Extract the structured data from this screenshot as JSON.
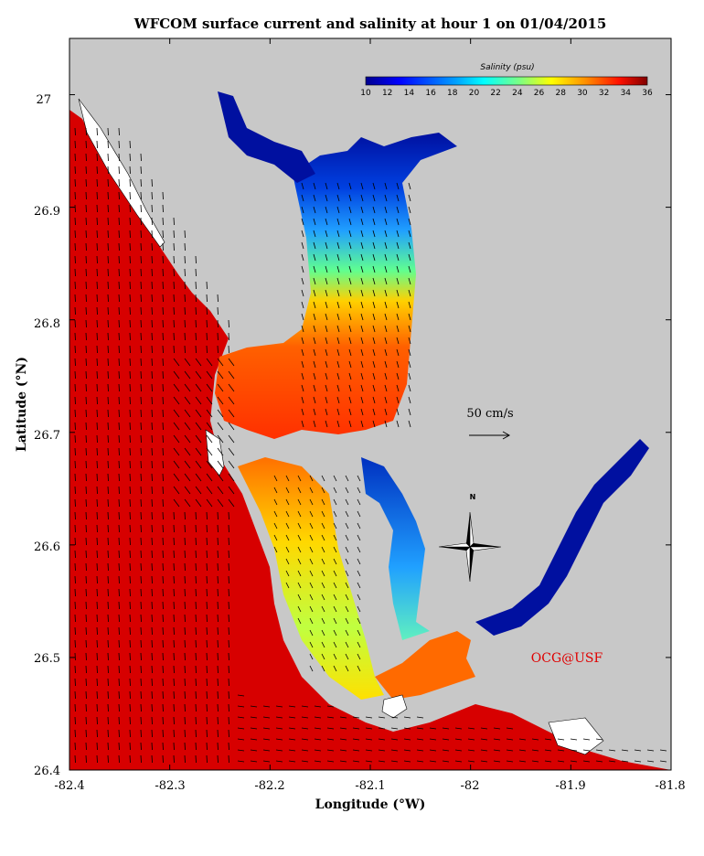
{
  "title": "WFCOM surface current and salinity at hour 1 on 01/04/2015",
  "xlabel": "Longitude (°W)",
  "ylabel": "Latitude (°N)",
  "x_ticks": [
    "-82.4",
    "-82.3",
    "-82.2",
    "-82.1",
    "-82",
    "-81.9",
    "-81.8"
  ],
  "y_ticks": [
    "27",
    "26.9",
    "26.8",
    "26.7",
    "26.6",
    "26.5",
    "26.4"
  ],
  "xlim": [
    -82.4,
    -81.8
  ],
  "ylim": [
    26.4,
    27.05
  ],
  "colorbar": {
    "title": "Salinity (psu)",
    "min": 10,
    "max": 36,
    "labels": [
      "10",
      "12",
      "14",
      "16",
      "18",
      "20",
      "22",
      "24",
      "26",
      "28",
      "30",
      "32",
      "34",
      "36"
    ]
  },
  "scale_vector_label": "50 cm/s",
  "compass_label": "N",
  "credit": "OCG@USF",
  "colors": {
    "land": "#c8c8c8",
    "gulf_water": "#d70000",
    "low_salinity": "#0010a0"
  },
  "icons": [
    "north-arrow-icon",
    "compass-rose-icon"
  ]
}
